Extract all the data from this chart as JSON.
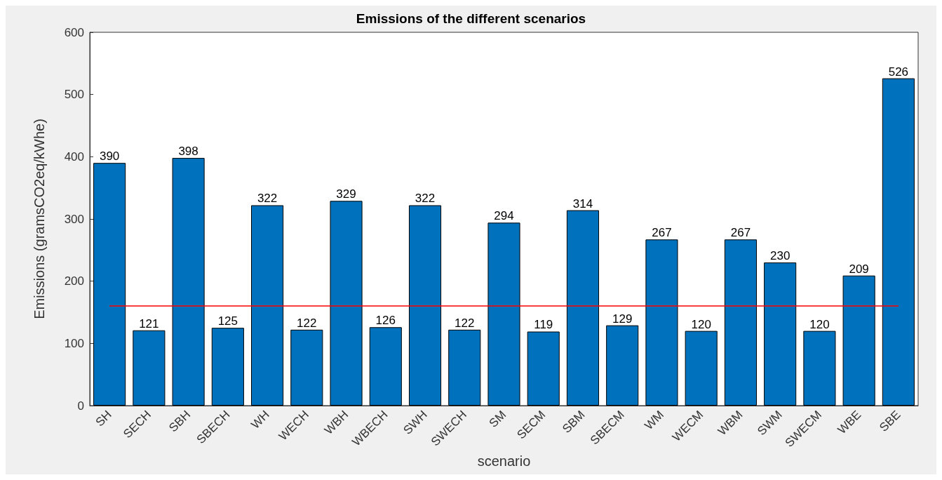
{
  "chart_data": {
    "type": "bar",
    "title": "Emissions of the different scenarios",
    "xlabel": "scenario",
    "ylabel": "Emissions (gramsCO2eq/kWhe)",
    "categories": [
      "SH",
      "SECH",
      "SBH",
      "SBECH",
      "WH",
      "WECH",
      "WBH",
      "WBECH",
      "SWH",
      "SWECH",
      "SM",
      "SECM",
      "SBM",
      "SBECM",
      "WM",
      "WECM",
      "WBM",
      "SWM",
      "SWECM",
      "WBE",
      "SBE"
    ],
    "values": [
      390,
      121,
      398,
      125,
      322,
      122,
      329,
      126,
      322,
      122,
      294,
      119,
      314,
      129,
      267,
      120,
      267,
      230,
      120,
      209,
      526
    ],
    "color": "#0072bd",
    "data_labels": true,
    "ylim": [
      0,
      600
    ],
    "yticks": [
      0,
      100,
      200,
      300,
      400,
      500,
      600
    ],
    "grid": false,
    "ref_lines": [
      {
        "axis": "y",
        "value": 160,
        "color": "#ff0000"
      }
    ]
  }
}
